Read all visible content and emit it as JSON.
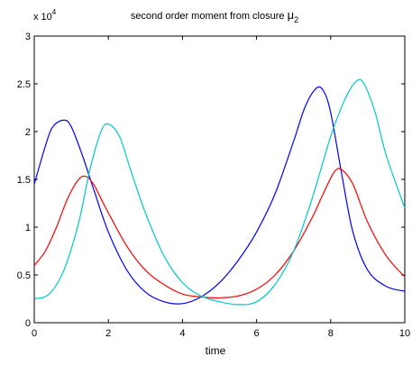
{
  "chart_data": {
    "type": "line",
    "title": "second order moment from closure",
    "title_symbol": "μ",
    "title_subscript": "2",
    "xlabel": "time",
    "ylabel": "",
    "y_multiplier_label": "x 10",
    "y_multiplier_exponent": "4",
    "xlim": [
      0,
      10
    ],
    "ylim": [
      0,
      3
    ],
    "x_ticks": [
      0,
      2,
      4,
      6,
      8,
      10
    ],
    "y_ticks": [
      0,
      0.5,
      1,
      1.5,
      2,
      2.5,
      3
    ],
    "grid": false,
    "legend": "none",
    "series": [
      {
        "color": "#0000ff",
        "x": [
          0,
          0.3,
          0.5,
          0.8,
          1.0,
          1.3,
          1.6,
          2.0,
          2.5,
          3.0,
          3.5,
          4.0,
          4.5,
          5.0,
          5.5,
          6.0,
          6.5,
          7.0,
          7.3,
          7.6,
          7.8,
          8.0,
          8.3,
          8.6,
          9.0,
          9.5,
          10.0
        ],
        "y": [
          1.45,
          1.85,
          2.05,
          2.12,
          2.05,
          1.75,
          1.4,
          0.95,
          0.55,
          0.32,
          0.22,
          0.2,
          0.27,
          0.42,
          0.65,
          0.95,
          1.35,
          1.9,
          2.25,
          2.45,
          2.43,
          2.2,
          1.55,
          0.95,
          0.55,
          0.38,
          0.33
        ]
      },
      {
        "color": "#ff0000",
        "x": [
          0,
          0.3,
          0.6,
          0.9,
          1.2,
          1.4,
          1.6,
          1.8,
          2.0,
          2.5,
          3.0,
          3.5,
          4.0,
          4.5,
          5.0,
          5.5,
          6.0,
          6.5,
          7.0,
          7.5,
          7.8,
          8.1,
          8.3,
          8.6,
          9.0,
          9.5,
          10.0
        ],
        "y": [
          0.6,
          0.75,
          1.0,
          1.3,
          1.5,
          1.53,
          1.45,
          1.3,
          1.15,
          0.8,
          0.55,
          0.4,
          0.3,
          0.27,
          0.26,
          0.28,
          0.35,
          0.5,
          0.75,
          1.1,
          1.35,
          1.58,
          1.6,
          1.45,
          1.05,
          0.7,
          0.48
        ]
      },
      {
        "color": "#00c8c8",
        "x": [
          0,
          0.4,
          0.8,
          1.2,
          1.5,
          1.8,
          2.0,
          2.3,
          2.6,
          3.0,
          3.5,
          4.0,
          4.5,
          5.0,
          5.5,
          6.0,
          6.5,
          7.0,
          7.5,
          8.0,
          8.4,
          8.7,
          8.9,
          9.2,
          9.5,
          10.0
        ],
        "y": [
          0.25,
          0.3,
          0.55,
          1.05,
          1.6,
          2.0,
          2.08,
          1.95,
          1.6,
          1.15,
          0.7,
          0.42,
          0.28,
          0.22,
          0.19,
          0.22,
          0.4,
          0.75,
          1.3,
          1.95,
          2.35,
          2.53,
          2.5,
          2.2,
          1.75,
          1.2
        ]
      }
    ]
  }
}
